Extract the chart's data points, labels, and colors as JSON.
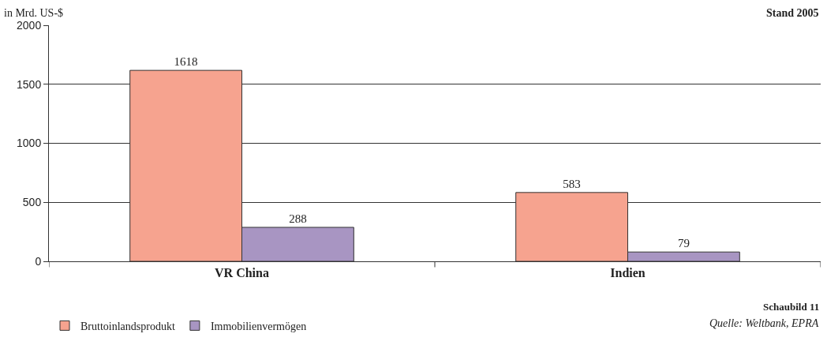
{
  "chart_data": {
    "type": "bar",
    "ylabel": "in Mrd. US-$",
    "categories": [
      "VR China",
      "Indien"
    ],
    "series": [
      {
        "name": "Bruttoinlandsprodukt",
        "color": "#f6a38f",
        "values": [
          1618,
          583
        ]
      },
      {
        "name": "Immobilienvermögen",
        "color": "#a895c2",
        "values": [
          288,
          79
        ]
      }
    ],
    "ylim": [
      0,
      2000
    ],
    "yticks": [
      0,
      500,
      1000,
      1500,
      2000
    ],
    "grid": "y",
    "legend": "bottom left",
    "data_labels": true,
    "annotations": [
      "Stand 2005",
      "Schaubild 11",
      "Quelle: Weltbank, EPRA"
    ]
  }
}
